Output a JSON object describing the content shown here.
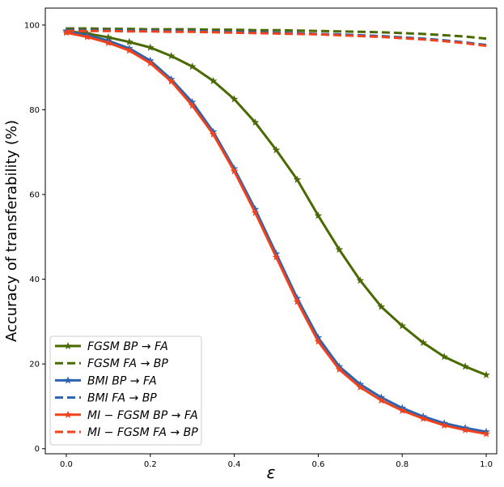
{
  "chart_data": {
    "type": "line",
    "title": "",
    "xlabel": "ε",
    "ylabel": "Accuracy of transferability (%)",
    "xlim": [
      -0.05,
      1.025
    ],
    "ylim": [
      -1.2,
      104
    ],
    "xticks": [
      0.0,
      0.2,
      0.4,
      0.6,
      0.8,
      1.0
    ],
    "xtick_labels": [
      "0.0",
      "0.2",
      "0.4",
      "0.6",
      "0.8",
      "1.0"
    ],
    "yticks": [
      0,
      20,
      40,
      60,
      80,
      100
    ],
    "ytick_labels": [
      "0",
      "20",
      "40",
      "60",
      "80",
      "100"
    ],
    "grid": false,
    "legend_position": "lower-left",
    "x": [
      0.0,
      0.05,
      0.1,
      0.15,
      0.2,
      0.25,
      0.3,
      0.35,
      0.4,
      0.45,
      0.5,
      0.55,
      0.6,
      0.65,
      0.7,
      0.75,
      0.8,
      0.85,
      0.9,
      0.95,
      1.0
    ],
    "series": [
      {
        "name": "FGSM BP → FA",
        "color": "#4a6a00",
        "style": "solid",
        "marker": "star",
        "values": [
          98.6,
          98.0,
          97.1,
          96.0,
          94.7,
          92.7,
          90.2,
          86.8,
          82.5,
          77.0,
          70.5,
          63.5,
          55.0,
          47.0,
          39.7,
          33.5,
          29.0,
          25.0,
          21.7,
          19.4,
          17.4
        ]
      },
      {
        "name": "FGSM FA → BP",
        "color": "#4a6a00",
        "style": "dashed",
        "marker": "none",
        "values": [
          99.2,
          99.2,
          99.1,
          99.1,
          99.0,
          99.0,
          99.0,
          98.9,
          98.9,
          98.8,
          98.8,
          98.7,
          98.6,
          98.5,
          98.4,
          98.3,
          98.1,
          97.9,
          97.6,
          97.3,
          96.8
        ]
      },
      {
        "name": "BMI BP → FA",
        "color": "#2a63b0",
        "style": "solid",
        "marker": "star",
        "values": [
          98.6,
          97.6,
          96.3,
          94.5,
          91.6,
          87.2,
          81.8,
          74.8,
          66.1,
          56.5,
          46.0,
          35.5,
          26.2,
          19.4,
          15.2,
          12.1,
          9.6,
          7.6,
          6.0,
          4.9,
          4.0
        ]
      },
      {
        "name": "BMI FA → BP",
        "color": "#2a63b0",
        "style": "dashed",
        "marker": "none",
        "values": [
          98.8,
          98.8,
          98.8,
          98.7,
          98.7,
          98.6,
          98.6,
          98.5,
          98.4,
          98.3,
          98.2,
          98.1,
          97.9,
          97.8,
          97.6,
          97.4,
          97.1,
          96.8,
          96.4,
          95.9,
          95.3
        ]
      },
      {
        "name": "MI − FGSM BP → FA",
        "color": "#f0421c",
        "style": "solid",
        "marker": "star",
        "values": [
          98.2,
          97.2,
          95.8,
          94.0,
          91.0,
          86.7,
          81.0,
          74.2,
          65.5,
          55.7,
          45.2,
          34.7,
          25.3,
          18.7,
          14.5,
          11.4,
          9.0,
          7.1,
          5.5,
          4.4,
          3.5
        ]
      },
      {
        "name": "MI − FGSM FA → BP",
        "color": "#f0421c",
        "style": "dashed",
        "marker": "none",
        "values": [
          98.6,
          98.6,
          98.6,
          98.5,
          98.5,
          98.4,
          98.4,
          98.3,
          98.2,
          98.1,
          98.0,
          97.9,
          97.8,
          97.6,
          97.4,
          97.2,
          96.9,
          96.6,
          96.2,
          95.7,
          95.1
        ]
      }
    ]
  }
}
